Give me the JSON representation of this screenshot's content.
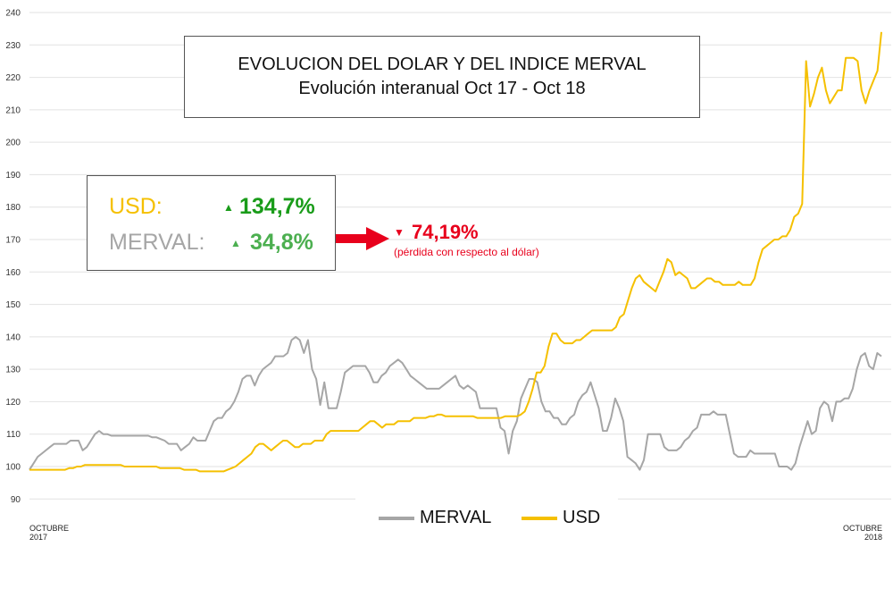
{
  "chart_data": {
    "type": "line",
    "title": "EVOLUCION DEL DOLAR Y DEL INDICE MERVAL",
    "subtitle": "Evolución interanual Oct 17 - Oct 18",
    "x_start_label": [
      "OCTUBRE",
      "2017"
    ],
    "x_end_label": [
      "OCTUBRE",
      "2018"
    ],
    "ylim": [
      85,
      240
    ],
    "yticks": [
      90,
      100,
      110,
      120,
      130,
      140,
      150,
      160,
      170,
      180,
      190,
      200,
      210,
      220,
      230,
      240
    ],
    "grid": true,
    "legend_position": "bottom",
    "series": [
      {
        "name": "MERVAL",
        "color": "#a6a6a6",
        "values": [
          99,
          101,
          103,
          104,
          105,
          106,
          107,
          107,
          107,
          107,
          108,
          108,
          108,
          105,
          106,
          108,
          110,
          111,
          110,
          110,
          109.5,
          109.5,
          109.5,
          109.5,
          109.5,
          109.5,
          109.5,
          109.5,
          109.5,
          109.5,
          109,
          109,
          108.5,
          108,
          107,
          107,
          107,
          105,
          106,
          107,
          109,
          108,
          108,
          108,
          111,
          114,
          115,
          115,
          117,
          118,
          120,
          123,
          127,
          128,
          128,
          125,
          128,
          130,
          131,
          132,
          134,
          134,
          134,
          135,
          139,
          140,
          139,
          135,
          139,
          130,
          127,
          119,
          126,
          118,
          118,
          118,
          123,
          129,
          130,
          131,
          131,
          131,
          131,
          129,
          126,
          126,
          128,
          129,
          131,
          132,
          133,
          132,
          130,
          128,
          127,
          126,
          125,
          124,
          124,
          124,
          124,
          125,
          126,
          127,
          128,
          125,
          124,
          125,
          124,
          123,
          118,
          118,
          118,
          118,
          118,
          112,
          111,
          104,
          111,
          114,
          121,
          124,
          127,
          127,
          126,
          120,
          117,
          117,
          115,
          115,
          113,
          113,
          115,
          116,
          120,
          122,
          123,
          126,
          122,
          118,
          111,
          111,
          115,
          121,
          118,
          114,
          103,
          102,
          101,
          99,
          102,
          110,
          110,
          110,
          110,
          106,
          105,
          105,
          105,
          106,
          108,
          109,
          111,
          112,
          116,
          116,
          116,
          117,
          116,
          116,
          116,
          110,
          104,
          103,
          103,
          103,
          105,
          104,
          104,
          104,
          104,
          104,
          104,
          100,
          100,
          100,
          99,
          101,
          106,
          110,
          114,
          110,
          111,
          118,
          120,
          119,
          114,
          120,
          120,
          121,
          121,
          124,
          130,
          134,
          135,
          131,
          130,
          135,
          134
        ]
      },
      {
        "name": "USD",
        "color": "#f5c000",
        "values": [
          99,
          99,
          99,
          99,
          99,
          99,
          99,
          99,
          99,
          99,
          99.5,
          99.5,
          100,
          100,
          100.5,
          100.5,
          100.5,
          100.5,
          100.5,
          100.5,
          100.5,
          100.5,
          100.5,
          100.5,
          100,
          100,
          100,
          100,
          100,
          100,
          100,
          100,
          100,
          99.5,
          99.5,
          99.5,
          99.5,
          99.5,
          99.5,
          99,
          99,
          99,
          99,
          98.5,
          98.5,
          98.5,
          98.5,
          98.5,
          98.5,
          98.5,
          99,
          99.5,
          100,
          101,
          102,
          103,
          104,
          106,
          107,
          107,
          106,
          105,
          106,
          107,
          108,
          108,
          107,
          106,
          106,
          107,
          107,
          107,
          108,
          108,
          108,
          110,
          111,
          111,
          111,
          111,
          111,
          111,
          111,
          111,
          112,
          113,
          114,
          114,
          113,
          112,
          113,
          113,
          113,
          114,
          114,
          114,
          114,
          115,
          115,
          115,
          115,
          115.5,
          115.5,
          116,
          116,
          115.5,
          115.5,
          115.5,
          115.5,
          115.5,
          115.5,
          115.5,
          115.5,
          115,
          115,
          115,
          115,
          115,
          115,
          115,
          115.5,
          115.5,
          115.5,
          115.5,
          116,
          117,
          120,
          124,
          129,
          129,
          131,
          137,
          141,
          141,
          139,
          138,
          138,
          138,
          139,
          139,
          140,
          141,
          142,
          142,
          142,
          142,
          142,
          142,
          143,
          146,
          147,
          151,
          155,
          158,
          159,
          157,
          156,
          155,
          154,
          157,
          160,
          164,
          163,
          159,
          160,
          159,
          158,
          155,
          155,
          156,
          157,
          158,
          158,
          157,
          157,
          156,
          156,
          156,
          156,
          157,
          156,
          156,
          156,
          158,
          163,
          167,
          168,
          169,
          170,
          170,
          171,
          171,
          173,
          177,
          178,
          181,
          225,
          211,
          215,
          220,
          223,
          216,
          212,
          214,
          216,
          216,
          226,
          226,
          226,
          225,
          216,
          212,
          216,
          219,
          222,
          234
        ]
      }
    ]
  },
  "annotations": {
    "usd_label": "USD:",
    "usd_change": "134,7%",
    "merval_label": "MERVAL:",
    "merval_change": "34,8%",
    "loss_value": "74,19%",
    "loss_note": "(pérdida con respecto al dólar)",
    "up_arrow_icon": "▲",
    "down_arrow_icon": "▼"
  },
  "colors": {
    "usd": "#f5c000",
    "merval": "#a6a6a6",
    "gain_green": "#1a9c1a",
    "gain_green_light": "#4caf50",
    "loss_red": "#e8001c"
  }
}
